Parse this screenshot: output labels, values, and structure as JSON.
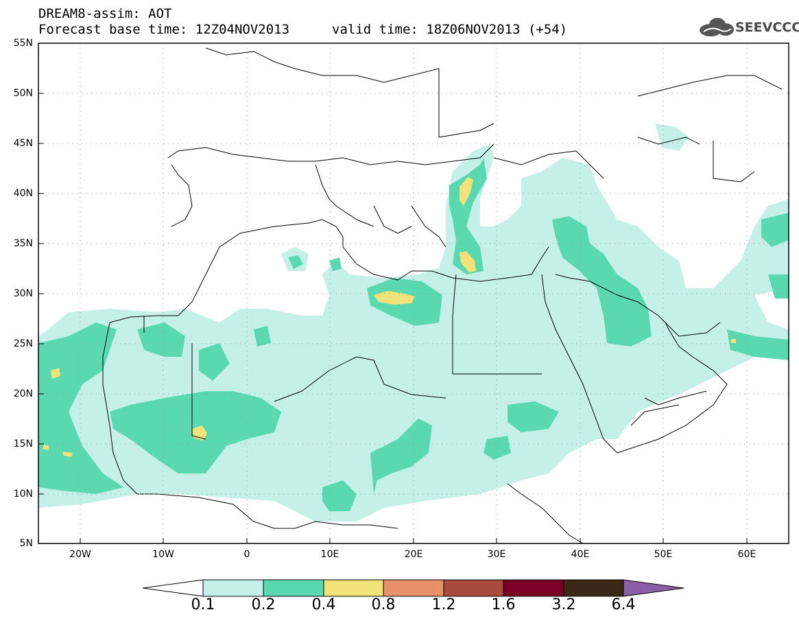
{
  "header": {
    "model_title": "DREAM8-assim: AOT",
    "base_time": "Forecast base time: 12Z04NOV2013",
    "valid_time": "valid time: 18Z06NOV2013 (+54)"
  },
  "logo": {
    "text": "SEEVCCC",
    "icon": "cloud-icon"
  },
  "axes": {
    "lat_labels": [
      "55N",
      "50N",
      "45N",
      "40N",
      "35N",
      "30N",
      "25N",
      "20N",
      "15N",
      "10N",
      "5N"
    ],
    "lon_labels": [
      "20W",
      "10W",
      "0",
      "10E",
      "20E",
      "30E",
      "40E",
      "50E",
      "60E"
    ],
    "lat_range": [
      5,
      55
    ],
    "lon_range": [
      -25,
      65
    ],
    "grid": "dotted"
  },
  "colorbar": {
    "labels": [
      "0.1",
      "0.2",
      "0.4",
      "0.8",
      "1.2",
      "1.6",
      "3.2",
      "6.4"
    ],
    "colors": [
      "#ffffff",
      "#c4f0e8",
      "#5ad9b1",
      "#f2e27a",
      "#e8906a",
      "#a84a3c",
      "#7a0028",
      "#3c2818",
      "#8a5fa8"
    ]
  },
  "colors": {
    "level_0_2": "#c4f0e8",
    "level_0_4": "#5ad9b1",
    "level_0_8": "#f2e27a",
    "coastline": "#000000"
  }
}
